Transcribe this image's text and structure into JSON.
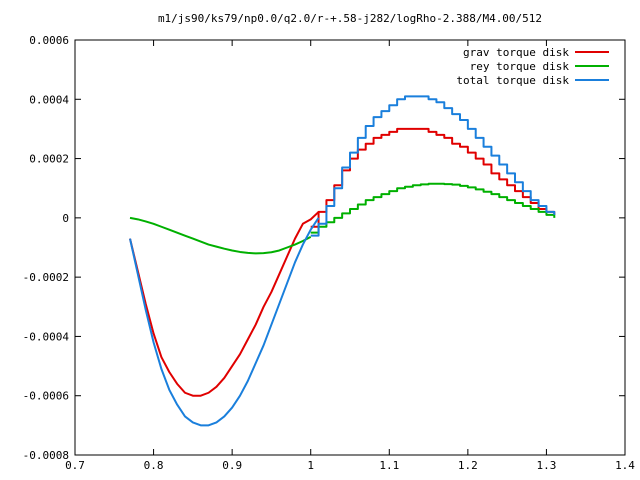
{
  "chart_data": {
    "type": "line",
    "title": "m1/js90/ks79/np0.0/q2.0/r-+.58-j282/logRho-2.388/M4.00/512",
    "xlabel": "",
    "ylabel": "",
    "xlim": [
      0.7,
      1.4
    ],
    "ylim": [
      -0.0008,
      0.0006
    ],
    "xticks": [
      0.7,
      0.8,
      0.9,
      1.0,
      1.1,
      1.2,
      1.3,
      1.4
    ],
    "xtick_labels": [
      "0.7",
      "0.8",
      "0.9",
      "1",
      "1.1",
      "1.2",
      "1.3",
      "1.4"
    ],
    "yticks": [
      -0.0008,
      -0.0006,
      -0.0004,
      -0.0002,
      0,
      0.0002,
      0.0004,
      0.0006
    ],
    "ytick_labels": [
      "-0.0008",
      "-0.0006",
      "-0.0004",
      "-0.0002",
      "0",
      "0.0002",
      "0.0004",
      "0.0006"
    ],
    "grid": false,
    "legend_position": "top-right",
    "series": [
      {
        "name": "grav torque disk",
        "color": "#e00000",
        "step": false,
        "x": [
          0.77,
          0.78,
          0.79,
          0.8,
          0.81,
          0.82,
          0.83,
          0.84,
          0.85,
          0.86,
          0.87,
          0.88,
          0.89,
          0.9,
          0.91,
          0.92,
          0.93,
          0.94,
          0.95,
          0.96,
          0.97,
          0.98,
          0.99,
          1.0,
          1.01
        ],
        "y": [
          -7e-05,
          -0.00018,
          -0.00029,
          -0.00039,
          -0.00047,
          -0.00052,
          -0.00056,
          -0.00059,
          -0.0006,
          -0.0006,
          -0.00059,
          -0.00057,
          -0.00054,
          -0.0005,
          -0.00046,
          -0.00041,
          -0.00036,
          -0.0003,
          -0.00025,
          -0.00019,
          -0.00013,
          -7e-05,
          -2e-05,
          -5e-06,
          2e-05
        ]
      },
      {
        "name": "grav torque disk (stepped)",
        "color": "#e00000",
        "step": true,
        "x": [
          1.0,
          1.01,
          1.02,
          1.03,
          1.04,
          1.05,
          1.06,
          1.07,
          1.08,
          1.09,
          1.1,
          1.11,
          1.12,
          1.13,
          1.14,
          1.15,
          1.16,
          1.17,
          1.18,
          1.19,
          1.2,
          1.21,
          1.22,
          1.23,
          1.24,
          1.25,
          1.26,
          1.27,
          1.28,
          1.29,
          1.3,
          1.31
        ],
        "y": [
          -3e-05,
          2e-05,
          6e-05,
          0.00011,
          0.00016,
          0.0002,
          0.00023,
          0.00025,
          0.00027,
          0.00028,
          0.00029,
          0.0003,
          0.0003,
          0.0003,
          0.0003,
          0.00029,
          0.00028,
          0.00027,
          0.00025,
          0.00024,
          0.00022,
          0.0002,
          0.00018,
          0.00015,
          0.00013,
          0.00011,
          9e-05,
          7e-05,
          5e-05,
          3e-05,
          2e-05,
          1e-05
        ]
      },
      {
        "name": "rey torque disk",
        "color": "#00b000",
        "step": false,
        "x": [
          0.77,
          0.78,
          0.79,
          0.8,
          0.81,
          0.82,
          0.83,
          0.84,
          0.85,
          0.86,
          0.87,
          0.88,
          0.89,
          0.9,
          0.91,
          0.92,
          0.93,
          0.94,
          0.95,
          0.96,
          0.97,
          0.98,
          0.99,
          1.0
        ],
        "y": [
          0.0,
          -5e-06,
          -1.2e-05,
          -2e-05,
          -3e-05,
          -4e-05,
          -5e-05,
          -6e-05,
          -7e-05,
          -8e-05,
          -9e-05,
          -9.7e-05,
          -0.000104,
          -0.00011,
          -0.000115,
          -0.000118,
          -0.00012,
          -0.000119,
          -0.000116,
          -0.00011,
          -0.0001,
          -9e-05,
          -7.8e-05,
          -6.4e-05
        ]
      },
      {
        "name": "rey torque disk (stepped)",
        "color": "#00b000",
        "step": true,
        "x": [
          1.0,
          1.01,
          1.02,
          1.03,
          1.04,
          1.05,
          1.06,
          1.07,
          1.08,
          1.09,
          1.1,
          1.11,
          1.12,
          1.13,
          1.14,
          1.15,
          1.16,
          1.17,
          1.18,
          1.19,
          1.2,
          1.21,
          1.22,
          1.23,
          1.24,
          1.25,
          1.26,
          1.27,
          1.28,
          1.29,
          1.3,
          1.31
        ],
        "y": [
          -5e-05,
          -3e-05,
          -1.5e-05,
          0.0,
          1.5e-05,
          3e-05,
          4.5e-05,
          6e-05,
          7e-05,
          8e-05,
          9e-05,
          0.0001,
          0.000105,
          0.00011,
          0.000113,
          0.000115,
          0.000115,
          0.000114,
          0.000112,
          0.000108,
          0.000103,
          9.6e-05,
          8.8e-05,
          8e-05,
          7e-05,
          6e-05,
          5e-05,
          4e-05,
          3e-05,
          2e-05,
          1e-05,
          0.0
        ]
      },
      {
        "name": "total torque disk",
        "color": "#1a7fdc",
        "step": false,
        "x": [
          0.77,
          0.78,
          0.79,
          0.8,
          0.81,
          0.82,
          0.83,
          0.84,
          0.85,
          0.86,
          0.87,
          0.88,
          0.89,
          0.9,
          0.91,
          0.92,
          0.93,
          0.94,
          0.95,
          0.96,
          0.97,
          0.98,
          0.99,
          1.0,
          1.01
        ],
        "y": [
          -7e-05,
          -0.00019,
          -0.00031,
          -0.00042,
          -0.00051,
          -0.00058,
          -0.00063,
          -0.00067,
          -0.00069,
          -0.0007,
          -0.0007,
          -0.00069,
          -0.00067,
          -0.00064,
          -0.0006,
          -0.00055,
          -0.00049,
          -0.00043,
          -0.00036,
          -0.00029,
          -0.00022,
          -0.00015,
          -9e-05,
          -4e-05,
          0.0
        ]
      },
      {
        "name": "total torque disk (stepped)",
        "color": "#1a7fdc",
        "step": true,
        "x": [
          1.0,
          1.01,
          1.02,
          1.03,
          1.04,
          1.05,
          1.06,
          1.07,
          1.08,
          1.09,
          1.1,
          1.11,
          1.12,
          1.13,
          1.14,
          1.15,
          1.16,
          1.17,
          1.18,
          1.19,
          1.2,
          1.21,
          1.22,
          1.23,
          1.24,
          1.25,
          1.26,
          1.27,
          1.28,
          1.29,
          1.3,
          1.31
        ],
        "y": [
          -6e-05,
          -2e-05,
          4e-05,
          0.0001,
          0.00017,
          0.00022,
          0.00027,
          0.00031,
          0.00034,
          0.00036,
          0.00038,
          0.0004,
          0.00041,
          0.00041,
          0.00041,
          0.0004,
          0.00039,
          0.00037,
          0.00035,
          0.00033,
          0.0003,
          0.00027,
          0.00024,
          0.00021,
          0.00018,
          0.00015,
          0.00012,
          9e-05,
          6e-05,
          4e-05,
          2e-05,
          1e-05
        ]
      }
    ],
    "legend": [
      {
        "label": "grav torque disk",
        "color": "#e00000"
      },
      {
        "label": "rey torque disk",
        "color": "#00b000"
      },
      {
        "label": "total torque disk",
        "color": "#1a7fdc"
      }
    ]
  }
}
